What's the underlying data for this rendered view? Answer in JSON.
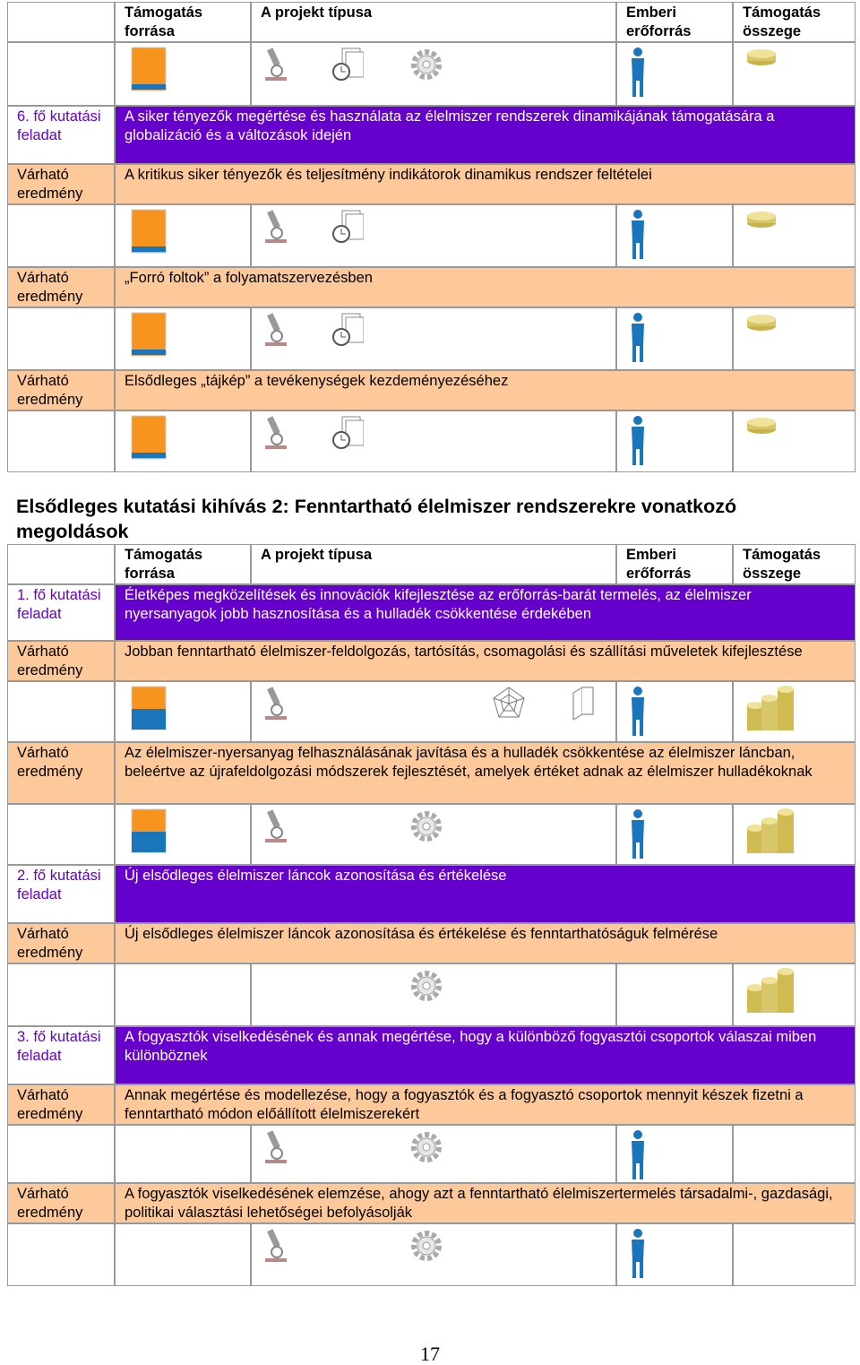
{
  "table1": {
    "header": [
      "Támogatás forrása",
      "A projekt típusa",
      "Emberi erőforrás",
      "Támogatás összege"
    ],
    "rows": [
      {
        "label": "6. fő kutatási feladat",
        "text": "A siker tényezők megértése és használata az élelmiszer rendszerek dinamikájának támogatására a globalizáció és a változások idején"
      },
      {
        "label": "Várható eredmény",
        "text": "A kritikus siker tényezők és teljesítmény indikátorok dinamikus rendszer feltételei"
      },
      {
        "label": "Várható eredmény",
        "text": "„Forró foltok” a folyamatszervezésben"
      },
      {
        "label": "Várható eredmény",
        "text": "Elsődleges „tájkép” a tevékenységek kezdeményezéséhez"
      }
    ]
  },
  "heading": "Elsődleges kutatási kihívás 2: Fenntartható élelmiszer rendszerekre vonatkozó megoldások",
  "table2": {
    "header": [
      "Támogatás forrása",
      "A projekt típusa",
      "Emberi erőforrás",
      "Támogatás összege"
    ],
    "rows": [
      {
        "label": "1. fő kutatási feladat",
        "text": "Életképes megközelítések és innovációk kifejlesztése az erőforrás-barát termelés, az élelmiszer nyersanyagok jobb hasznosítása és a hulladék csökkentése érdekében"
      },
      {
        "label": "Várható eredmény",
        "text": "Jobban fenntartható élelmiszer-feldolgozás, tartósítás, csomagolási és szállítási műveletek kifejlesztése"
      },
      {
        "label": "Várható eredmény",
        "text": "Az élelmiszer-nyersanyag felhasználásának javítása és a hulladék csökkentése az élelmiszer láncban, beleértve az újrafeldolgozási módszerek fejlesztését, amelyek értéket adnak az élelmiszer hulladékoknak"
      },
      {
        "label": "2. fő kutatási feladat",
        "text": "Új elsődleges élelmiszer láncok azonosítása és értékelése"
      },
      {
        "label": "Várható eredmény",
        "text": "Új elsődleges élelmiszer láncok azonosítása és értékelése és fenntarthatóságuk felmérése"
      },
      {
        "label": "3. fő kutatási feladat",
        "text": "A fogyasztók viselkedésének és annak megértése, hogy a különböző fogyasztói csoportok válaszai miben különböznek"
      },
      {
        "label": "Várható eredmény",
        "text": "Annak megértése és modellezése, hogy a fogyasztók és a fogyasztó csoportok mennyit készek fizetni a fenntartható módon előállított élelmiszerekért"
      },
      {
        "label": "Várható eredmény",
        "text": "A fogyasztók viselkedésének elemzése, ahogy azt a fenntartható élelmiszertermelés társadalmi-, gazdasági, politikai választási lehetőségei befolyásolják"
      }
    ]
  },
  "page_number": "17"
}
